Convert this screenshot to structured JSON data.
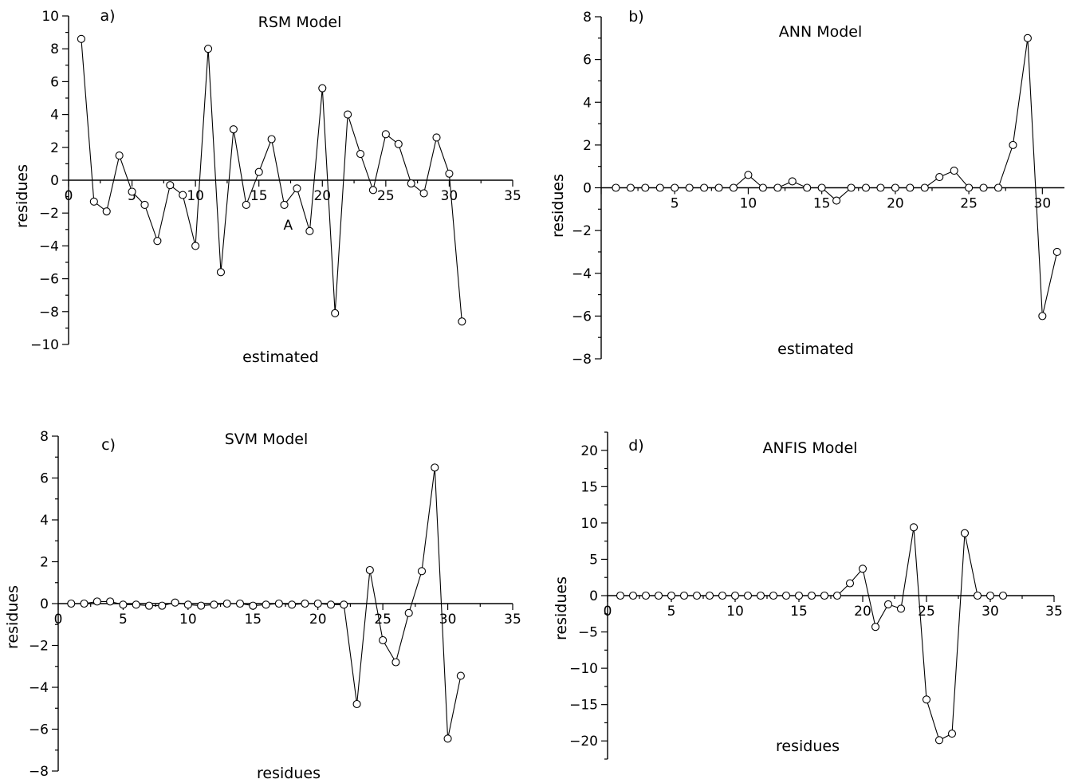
{
  "chart_data": [
    {
      "type": "line",
      "panel_label": "a)",
      "title": "RSM Model",
      "xlabel": "estimated",
      "ylabel": "residues",
      "annotation": "A",
      "xlim": [
        0,
        35
      ],
      "ylim": [
        -10,
        10
      ],
      "x_ticks": [
        0,
        5,
        10,
        15,
        20,
        25,
        30,
        35
      ],
      "y_ticks": [
        -10,
        -8,
        -6,
        -4,
        -2,
        0,
        2,
        4,
        6,
        8,
        10
      ],
      "x_tick_labels": [
        "0",
        "5",
        "10",
        "15",
        "20",
        "25",
        "30",
        "35"
      ],
      "y_tick_labels": [
        "−10",
        "−8",
        "−6",
        "−4",
        "−2",
        "0",
        "2",
        "4",
        "6",
        "8",
        "10"
      ],
      "x": [
        1,
        2,
        3,
        4,
        5,
        6,
        7,
        8,
        9,
        10,
        11,
        12,
        13,
        14,
        15,
        16,
        17,
        18,
        19,
        20,
        21,
        22,
        23,
        24,
        25,
        26,
        27,
        28,
        29,
        30,
        31
      ],
      "y": [
        8.6,
        -1.3,
        -1.9,
        1.5,
        -0.7,
        -1.5,
        -3.7,
        -0.3,
        -0.9,
        -4.0,
        8.0,
        -5.6,
        3.1,
        -1.5,
        0.5,
        2.5,
        -1.5,
        -0.5,
        -3.1,
        5.6,
        -8.1,
        4.0,
        1.6,
        -0.6,
        2.8,
        2.2,
        -0.2,
        -0.8,
        2.6,
        0.4,
        -8.6
      ]
    },
    {
      "type": "line",
      "panel_label": "b)",
      "title": "ANN Model",
      "xlabel": "estimated",
      "ylabel": "residues",
      "xlim": [
        0,
        31.5
      ],
      "ylim": [
        -8,
        8
      ],
      "x_ticks": [
        5,
        10,
        15,
        20,
        25,
        30
      ],
      "y_ticks": [
        -8,
        -6,
        -4,
        -2,
        0,
        2,
        4,
        6,
        8
      ],
      "x_tick_labels": [
        "5",
        "10",
        "15",
        "20",
        "25",
        "30"
      ],
      "y_tick_labels": [
        "−8",
        "−6",
        "−4",
        "−2",
        "0",
        "2",
        "4",
        "6",
        "8"
      ],
      "x": [
        1,
        2,
        3,
        4,
        5,
        6,
        7,
        8,
        9,
        10,
        11,
        12,
        13,
        14,
        15,
        16,
        17,
        18,
        19,
        20,
        21,
        22,
        23,
        24,
        25,
        26,
        27,
        28,
        29,
        30,
        31
      ],
      "y": [
        0,
        0,
        0,
        0,
        0,
        0,
        0,
        0,
        0,
        0.6,
        0,
        0,
        0.3,
        0,
        0,
        -0.6,
        0,
        0,
        0,
        0,
        0,
        0,
        0.5,
        0.8,
        0,
        0,
        0,
        2.0,
        7.0,
        -6.0,
        -3.0
      ]
    },
    {
      "type": "line",
      "panel_label": "c)",
      "title": "SVM Model",
      "xlabel": "residues",
      "ylabel": "residues",
      "xlim": [
        0,
        35
      ],
      "ylim": [
        -8,
        8
      ],
      "x_ticks": [
        0,
        5,
        10,
        15,
        20,
        25,
        30,
        35
      ],
      "y_ticks": [
        -8,
        -6,
        -4,
        -2,
        0,
        2,
        4,
        6,
        8
      ],
      "x_tick_labels": [
        "0",
        "5",
        "10",
        "15",
        "20",
        "25",
        "30",
        "35"
      ],
      "y_tick_labels": [
        "−8",
        "−6",
        "−4",
        "−2",
        "0",
        "2",
        "4",
        "6",
        "8"
      ],
      "x": [
        1,
        2,
        3,
        4,
        5,
        6,
        7,
        8,
        9,
        10,
        11,
        12,
        13,
        14,
        15,
        16,
        17,
        18,
        19,
        20,
        21,
        22,
        23,
        24,
        25,
        26,
        27,
        28,
        29,
        30,
        31
      ],
      "y": [
        0,
        0,
        0.1,
        0.1,
        -0.05,
        -0.05,
        -0.1,
        -0.1,
        0.05,
        -0.05,
        -0.1,
        -0.05,
        0,
        0,
        -0.1,
        -0.05,
        0,
        -0.05,
        0,
        0,
        -0.05,
        -0.05,
        -4.8,
        1.6,
        -1.75,
        -2.8,
        -0.45,
        1.55,
        6.5,
        -6.45,
        -3.45
      ]
    },
    {
      "type": "line",
      "panel_label": "d)",
      "title": "ANFIS Model",
      "xlabel": "residues",
      "ylabel": "residues",
      "xlim": [
        0,
        35
      ],
      "ylim": [
        -22.5,
        22.5
      ],
      "x_ticks": [
        0,
        5,
        10,
        15,
        20,
        25,
        30,
        35
      ],
      "y_ticks": [
        -20,
        -15,
        -10,
        -5,
        0,
        5,
        10,
        15,
        20
      ],
      "x_tick_labels": [
        "0",
        "5",
        "10",
        "15",
        "20",
        "25",
        "30",
        "35"
      ],
      "y_tick_labels": [
        "−20",
        "−15",
        "−10",
        "−5",
        "0",
        "5",
        "10",
        "15",
        "20"
      ],
      "x": [
        1,
        2,
        3,
        4,
        5,
        6,
        7,
        8,
        9,
        10,
        11,
        12,
        13,
        14,
        15,
        16,
        17,
        18,
        19,
        20,
        21,
        22,
        23,
        24,
        25,
        26,
        27,
        28,
        29,
        30,
        31
      ],
      "y": [
        0,
        0,
        0,
        0,
        0,
        0,
        0,
        0,
        0,
        0,
        0,
        0,
        0,
        0,
        0,
        0,
        0,
        0,
        1.7,
        3.7,
        -4.3,
        -1.2,
        -1.8,
        9.4,
        -14.3,
        -19.9,
        -19.0,
        8.6,
        0,
        0,
        0
      ]
    }
  ]
}
